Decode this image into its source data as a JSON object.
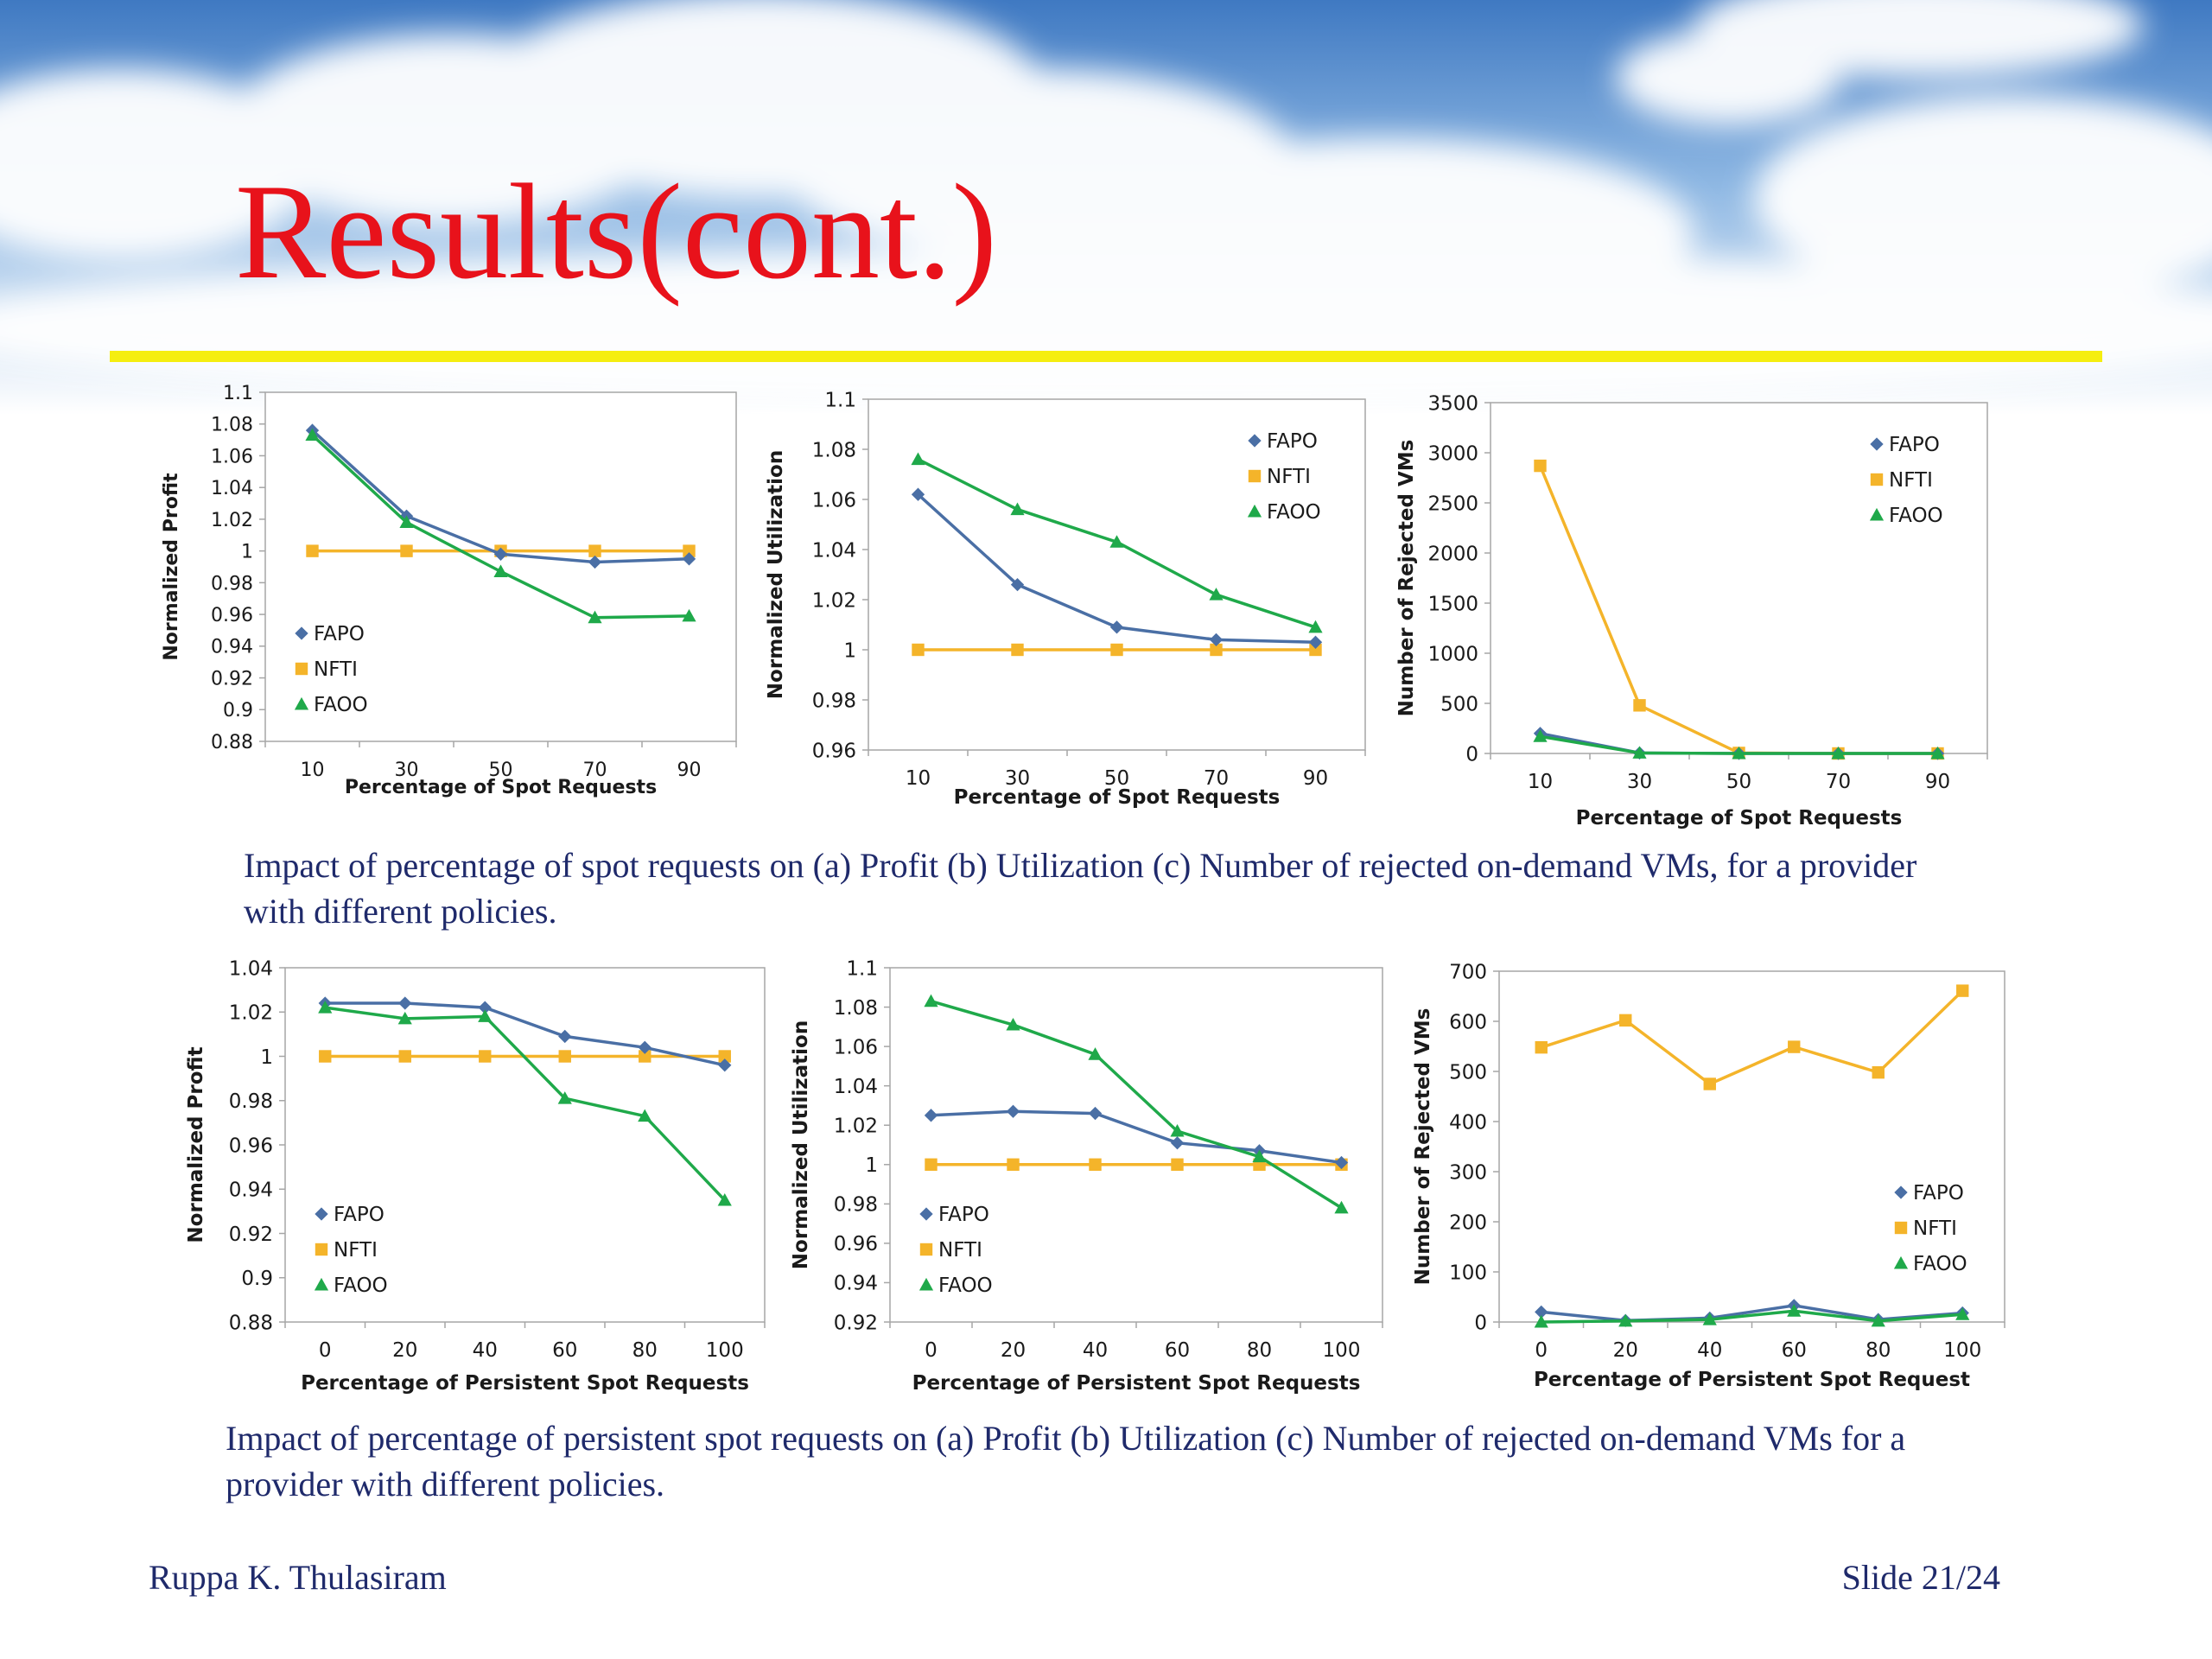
{
  "slide": {
    "title": "Results(cont.)",
    "caption1": "Impact of percentage of spot requests on (a) Profit (b) Utilization (c) Number of rejected on-demand VMs, for a provider with different policies.",
    "caption2": "Impact of percentage of persistent spot requests on (a) Profit (b) Utilization (c) Number of rejected on-demand VMs for a provider with different policies.",
    "author": "Ruppa K. Thulasiram",
    "slide_number": "Slide 21/24"
  },
  "colors": {
    "title": "#e8121b",
    "rule": "#f5ee10",
    "caption": "#1f2a6b",
    "FAPO": "#4a6fa5",
    "NFTI": "#f4b42a",
    "FAOO": "#1fa94a"
  },
  "chart_data": [
    {
      "type": "line",
      "xlabel": "Percentage of Spot Requests",
      "ylabel": "Normalized Profit",
      "x": [
        10,
        30,
        50,
        70,
        90
      ],
      "yticks": [
        "0.88",
        "0.9",
        "0.92",
        "0.94",
        "0.96",
        "0.98",
        "1",
        "1.02",
        "1.04",
        "1.06",
        "1.08",
        "1.1"
      ],
      "ylim": [
        0.88,
        1.1
      ],
      "legend": "left",
      "series": [
        {
          "name": "FAPO",
          "values": [
            1.076,
            1.022,
            0.998,
            0.993,
            0.995
          ]
        },
        {
          "name": "NFTI",
          "values": [
            1.0,
            1.0,
            1.0,
            1.0,
            1.0
          ]
        },
        {
          "name": "FAOO",
          "values": [
            1.073,
            1.018,
            0.987,
            0.958,
            0.959
          ]
        }
      ]
    },
    {
      "type": "line",
      "xlabel": "Percentage of Spot Requests",
      "ylabel": "Normalized Utilization",
      "x": [
        10,
        30,
        50,
        70,
        90
      ],
      "yticks": [
        "0.96",
        "0.98",
        "1",
        "1.02",
        "1.04",
        "1.06",
        "1.08",
        "1.1"
      ],
      "ylim": [
        0.96,
        1.1
      ],
      "legend": "top-right",
      "series": [
        {
          "name": "FAPO",
          "values": [
            1.062,
            1.026,
            1.009,
            1.004,
            1.003
          ]
        },
        {
          "name": "NFTI",
          "values": [
            1.0,
            1.0,
            1.0,
            1.0,
            1.0
          ]
        },
        {
          "name": "FAOO",
          "values": [
            1.076,
            1.056,
            1.043,
            1.022,
            1.009
          ]
        }
      ]
    },
    {
      "type": "line",
      "xlabel": "Percentage of Spot Requests",
      "ylabel": "Number of Rejected VMs",
      "x": [
        10,
        30,
        50,
        70,
        90
      ],
      "yticks": [
        "0",
        "500",
        "1000",
        "1500",
        "2000",
        "2500",
        "3000",
        "3500"
      ],
      "ylim": [
        0,
        3500
      ],
      "legend": "top-right",
      "series": [
        {
          "name": "FAPO",
          "values": [
            200,
            5,
            0,
            0,
            0
          ]
        },
        {
          "name": "NFTI",
          "values": [
            2870,
            480,
            5,
            0,
            0
          ]
        },
        {
          "name": "FAOO",
          "values": [
            170,
            5,
            0,
            0,
            0
          ]
        }
      ]
    },
    {
      "type": "line",
      "xlabel": "Percentage of Persistent Spot Requests",
      "ylabel": "Normalized Profit",
      "x": [
        0,
        20,
        40,
        60,
        80,
        100
      ],
      "yticks": [
        "0.88",
        "0.9",
        "0.92",
        "0.94",
        "0.96",
        "0.98",
        "1",
        "1.02",
        "1.04"
      ],
      "ylim": [
        0.88,
        1.04
      ],
      "legend": "left",
      "series": [
        {
          "name": "FAPO",
          "values": [
            1.024,
            1.024,
            1.022,
            1.009,
            1.004,
            0.996
          ]
        },
        {
          "name": "NFTI",
          "values": [
            1.0,
            1.0,
            1.0,
            1.0,
            1.0,
            1.0
          ]
        },
        {
          "name": "FAOO",
          "values": [
            1.022,
            1.017,
            1.018,
            0.981,
            0.973,
            0.935
          ]
        }
      ]
    },
    {
      "type": "line",
      "xlabel": "Percentage of Persistent Spot Requests",
      "ylabel": "Normalized Utilization",
      "x": [
        0,
        20,
        40,
        60,
        80,
        100
      ],
      "yticks": [
        "0.92",
        "0.94",
        "0.96",
        "0.98",
        "1",
        "1.02",
        "1.04",
        "1.06",
        "1.08",
        "1.1"
      ],
      "ylim": [
        0.92,
        1.1
      ],
      "legend": "left",
      "series": [
        {
          "name": "FAPO",
          "values": [
            1.025,
            1.027,
            1.026,
            1.011,
            1.007,
            1.001
          ]
        },
        {
          "name": "NFTI",
          "values": [
            1.0,
            1.0,
            1.0,
            1.0,
            1.0,
            1.0
          ]
        },
        {
          "name": "FAOO",
          "values": [
            1.083,
            1.071,
            1.056,
            1.017,
            1.004,
            0.978
          ]
        }
      ]
    },
    {
      "type": "line",
      "xlabel": "Percentage of Persistent Spot Request",
      "ylabel": "Number of Rejected VMs",
      "x": [
        0,
        20,
        40,
        60,
        80,
        100
      ],
      "yticks": [
        "0",
        "100",
        "200",
        "300",
        "400",
        "500",
        "600",
        "700"
      ],
      "ylim": [
        0,
        700
      ],
      "legend": "right",
      "series": [
        {
          "name": "FAPO",
          "values": [
            20,
            3,
            8,
            33,
            5,
            18
          ]
        },
        {
          "name": "NFTI",
          "values": [
            548,
            602,
            475,
            549,
            498,
            661
          ]
        },
        {
          "name": "FAOO",
          "values": [
            0,
            2,
            5,
            22,
            2,
            15
          ]
        }
      ]
    }
  ]
}
